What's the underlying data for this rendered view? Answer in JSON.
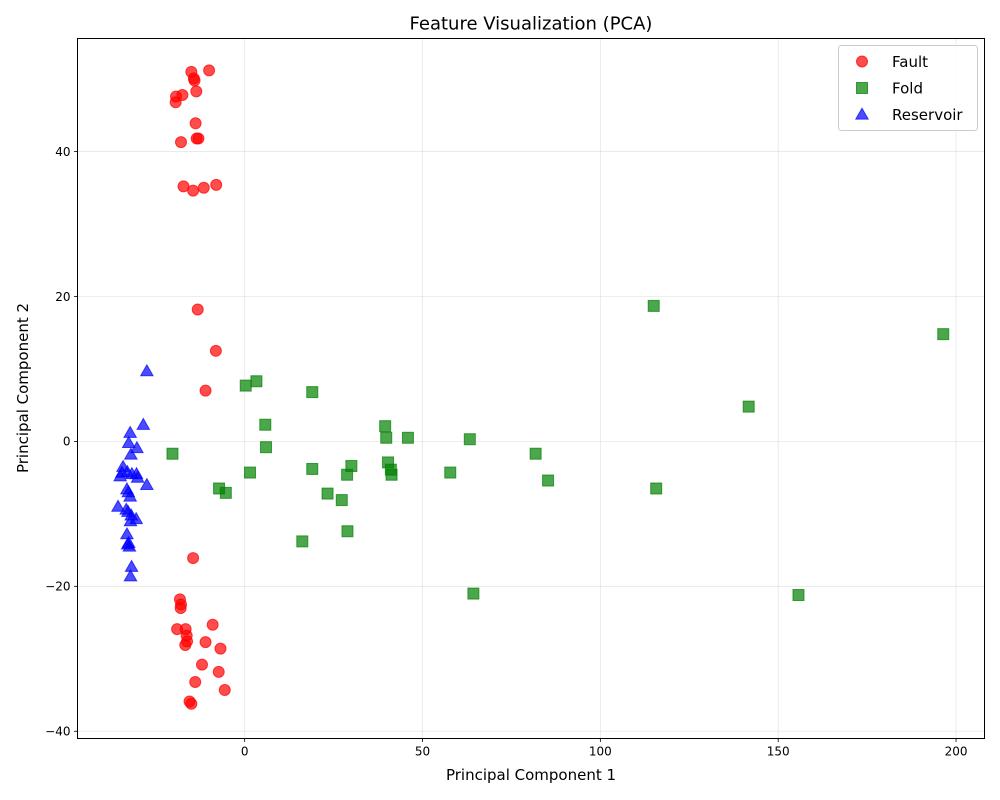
{
  "chart_data": {
    "type": "scatter",
    "title": "Feature Visualization (PCA)",
    "xlabel": "Principal Component 1",
    "ylabel": "Principal Component 2",
    "xlim": [
      -47,
      208
    ],
    "ylim": [
      -41,
      55.6
    ],
    "xticks": [
      0,
      50,
      100,
      150,
      200
    ],
    "yticks": [
      -40,
      -20,
      0,
      20,
      40
    ],
    "xtick_labels": [
      "0",
      "50",
      "100",
      "150",
      "200"
    ],
    "ytick_labels": [
      "−40",
      "−20",
      "0",
      "20",
      "40"
    ],
    "grid": true,
    "legend_position": "top-right",
    "series": [
      {
        "name": "Fault",
        "marker": "circle",
        "color": "#ff0000",
        "points": [
          [
            -15,
            51
          ],
          [
            -10,
            51.2
          ],
          [
            -14.3,
            50.1
          ],
          [
            -14.1,
            49.8
          ],
          [
            -13.6,
            48.3
          ],
          [
            -17.5,
            47.8
          ],
          [
            -19.3,
            47.6
          ],
          [
            -19.4,
            46.8
          ],
          [
            -13.8,
            43.9
          ],
          [
            -13.5,
            41.8
          ],
          [
            -13,
            41.8
          ],
          [
            -17.9,
            41.3
          ],
          [
            -17.2,
            35.2
          ],
          [
            -8,
            35.4
          ],
          [
            -11.5,
            35
          ],
          [
            -14.5,
            34.6
          ],
          [
            -13.2,
            18.2
          ],
          [
            -8.1,
            12.5
          ],
          [
            -11,
            7
          ],
          [
            -14.5,
            -16.1
          ],
          [
            -18.2,
            -21.8
          ],
          [
            -17.9,
            -22.5
          ],
          [
            -18,
            -23
          ],
          [
            -16.6,
            -25.9
          ],
          [
            -19,
            -25.9
          ],
          [
            -9,
            -25.3
          ],
          [
            -16.3,
            -26.8
          ],
          [
            -16.2,
            -27.6
          ],
          [
            -16.7,
            -28.1
          ],
          [
            -11,
            -27.7
          ],
          [
            -6.8,
            -28.6
          ],
          [
            -12,
            -30.8
          ],
          [
            -7.3,
            -31.8
          ],
          [
            -13.9,
            -33.2
          ],
          [
            -5.6,
            -34.3
          ],
          [
            -15.5,
            -35.9
          ],
          [
            -15,
            -36.2
          ]
        ]
      },
      {
        "name": "Fold",
        "marker": "square",
        "color": "#008000",
        "points": [
          [
            115,
            18.7
          ],
          [
            196.4,
            14.8
          ],
          [
            3.3,
            8.3
          ],
          [
            0.3,
            7.7
          ],
          [
            19,
            6.8
          ],
          [
            141.7,
            4.8
          ],
          [
            5.8,
            2.3
          ],
          [
            39.5,
            2.1
          ],
          [
            39.8,
            0.5
          ],
          [
            45.9,
            0.5
          ],
          [
            63.3,
            0.3
          ],
          [
            6,
            -0.8
          ],
          [
            -20.3,
            -1.7
          ],
          [
            81.8,
            -1.7
          ],
          [
            40.3,
            -2.9
          ],
          [
            30,
            -3.4
          ],
          [
            19,
            -3.8
          ],
          [
            41.1,
            -3.9
          ],
          [
            1.5,
            -4.3
          ],
          [
            57.8,
            -4.3
          ],
          [
            28.8,
            -4.6
          ],
          [
            41.3,
            -4.6
          ],
          [
            85.3,
            -5.4
          ],
          [
            115.7,
            -6.5
          ],
          [
            -7.2,
            -6.5
          ],
          [
            -5.3,
            -7.1
          ],
          [
            23.3,
            -7.2
          ],
          [
            27.3,
            -8.1
          ],
          [
            28.9,
            -12.4
          ],
          [
            16.2,
            -13.8
          ],
          [
            64.3,
            -21
          ],
          [
            155.7,
            -21.2
          ]
        ]
      },
      {
        "name": "Reservoir",
        "marker": "triangle",
        "color": "#0000ff",
        "points": [
          [
            -27.5,
            9.7
          ],
          [
            -28.5,
            2.3
          ],
          [
            -32.2,
            1.2
          ],
          [
            -32.6,
            -0.2
          ],
          [
            -30.3,
            -0.9
          ],
          [
            -32,
            -1.8
          ],
          [
            -34.2,
            -3.5
          ],
          [
            -34.5,
            -4.3
          ],
          [
            -33,
            -4.2
          ],
          [
            -31.7,
            -4.5
          ],
          [
            -35,
            -4.8
          ],
          [
            -30.4,
            -4.5
          ],
          [
            -30.1,
            -5
          ],
          [
            -27.5,
            -6
          ],
          [
            -33.1,
            -6.6
          ],
          [
            -32.7,
            -7
          ],
          [
            -32.2,
            -7.6
          ],
          [
            -35.6,
            -9
          ],
          [
            -33.3,
            -9.4
          ],
          [
            -32.8,
            -9.7
          ],
          [
            -31.9,
            -10.2
          ],
          [
            -30.5,
            -10.7
          ],
          [
            -32.1,
            -11
          ],
          [
            -33.1,
            -12.8
          ],
          [
            -32.6,
            -14
          ],
          [
            -32.9,
            -14.2
          ],
          [
            -32.4,
            -14.5
          ],
          [
            -31.8,
            -17.3
          ],
          [
            -32.1,
            -18.6
          ]
        ]
      }
    ]
  }
}
